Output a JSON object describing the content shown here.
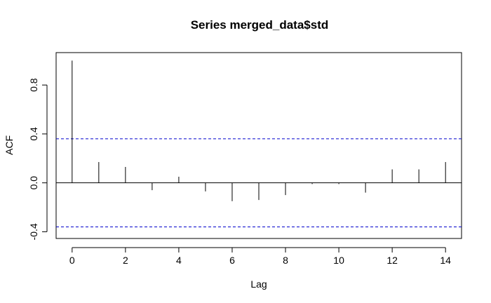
{
  "chart_data": {
    "type": "bar",
    "title": "Series  merged_data$std",
    "xlabel": "Lag",
    "ylabel": "ACF",
    "xlim": [
      -0.6,
      14.6
    ],
    "ylim": [
      -0.455,
      1.065
    ],
    "x_ticks": [
      0,
      2,
      4,
      6,
      8,
      10,
      12,
      14
    ],
    "y_ticks": [
      -0.4,
      0.0,
      0.4,
      0.8
    ],
    "y_tick_labels": [
      "-0.4",
      "0.0",
      "0.4",
      "0.8"
    ],
    "lags": [
      0,
      1,
      2,
      3,
      4,
      5,
      6,
      7,
      8,
      9,
      10,
      11,
      12,
      13,
      14
    ],
    "acf": [
      1.0,
      0.17,
      0.13,
      -0.06,
      0.05,
      -0.07,
      -0.15,
      -0.14,
      -0.1,
      -0.01,
      -0.01,
      -0.08,
      0.11,
      0.11,
      0.17
    ],
    "confidence_bound": 0.36,
    "zero_line": true,
    "grid": false,
    "colors": {
      "bars": "#000000",
      "confidence": "#0000cd",
      "axis": "#000000"
    }
  }
}
